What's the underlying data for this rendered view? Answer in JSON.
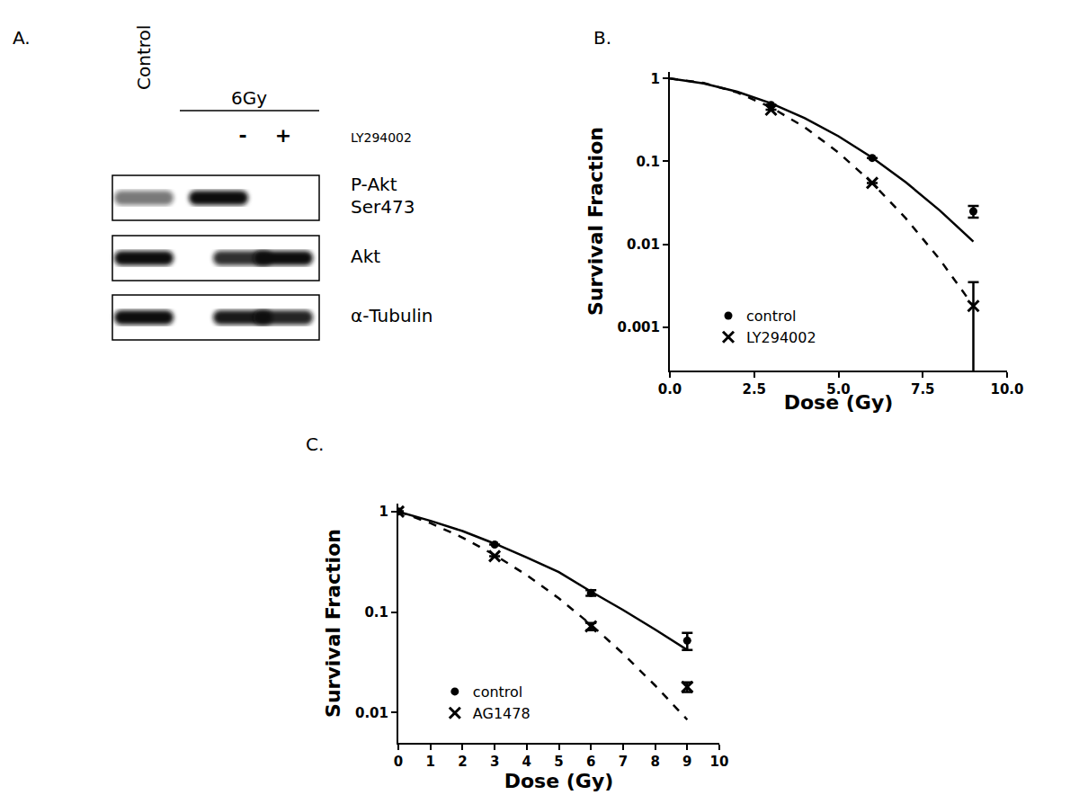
{
  "blot": {
    "title": "A.",
    "control_label": "Control",
    "treatment": "6Gy",
    "treatment_marks": [
      "-",
      "+"
    ],
    "drug": "LY294002",
    "rows": [
      {
        "label": [
          "P-Akt",
          "Ser473"
        ],
        "bands": [
          0.55,
          1.0,
          0.0
        ]
      },
      {
        "label": [
          "Akt"
        ],
        "bands": [
          1.0,
          0.85,
          1.0
        ]
      },
      {
        "label": [
          "α-Tubulin"
        ],
        "bands": [
          1.0,
          0.95,
          0.9
        ]
      }
    ]
  },
  "chart_data": [
    {
      "type": "scatter",
      "title": "B.",
      "x_label": "Dose (Gy)",
      "y_label": "Survival Fraction",
      "log": "y",
      "grid": false,
      "legend": "lower left",
      "xlim": [
        0,
        10
      ],
      "xticks": [
        {
          "value": 0,
          "label": "0.0"
        },
        {
          "value": 2.5,
          "label": "2.5"
        },
        {
          "value": 5,
          "label": "5.0"
        },
        {
          "value": 7.5,
          "label": "7.5"
        },
        {
          "value": 10,
          "label": "10.0"
        }
      ],
      "ylim": [
        0.0003,
        1.2
      ],
      "yticks": [
        0.001,
        0.01,
        0.1,
        1
      ],
      "x": [
        3,
        6,
        9
      ],
      "fit_x": [
        0,
        1,
        2,
        3,
        4,
        5,
        6,
        7,
        8,
        9
      ],
      "series": [
        {
          "name": "control",
          "color": "#000000",
          "marker": "circle",
          "line_style": "solid",
          "values": [
            0.48,
            0.11,
            0.025
          ],
          "errors": [
            0,
            0,
            0.004
          ],
          "fit": [
            1,
            0.871,
            0.692,
            0.502,
            0.332,
            0.201,
            0.111,
            0.0559,
            0.0257,
            0.0108
          ]
        },
        {
          "name": "LY294002",
          "color": "#000000",
          "marker": "x",
          "line_style": "dash",
          "values": [
            0.42,
            0.055,
            0.0018
          ],
          "errors": [
            0,
            0,
            0.0017
          ],
          "fit": [
            1,
            0.885,
            0.678,
            0.449,
            0.258,
            0.128,
            0.055,
            0.0205,
            0.0066,
            0.0018
          ]
        }
      ]
    },
    {
      "type": "scatter",
      "title": "C.",
      "x_label": "Dose (Gy)",
      "y_label": "Survival Fraction",
      "log": "y",
      "grid": false,
      "legend": "lower left",
      "xlim": [
        0,
        10
      ],
      "xticks": [
        0,
        1,
        2,
        3,
        4,
        5,
        6,
        7,
        8,
        9,
        10
      ],
      "ylim": [
        0.005,
        1.2
      ],
      "yticks": [
        0.01,
        0.1,
        1
      ],
      "x": [
        0,
        3,
        6,
        9
      ],
      "fit_x": [
        0,
        1,
        2,
        3,
        4,
        5,
        6,
        7,
        8,
        9
      ],
      "series": [
        {
          "name": "control",
          "color": "#000000",
          "marker": "circle",
          "line_style": "solid",
          "values": [
            1,
            0.47,
            0.155,
            0.052
          ],
          "errors": [
            0,
            0,
            0.01,
            0.01
          ],
          "fit": [
            1,
            0.81,
            0.64,
            0.48,
            0.35,
            0.25,
            0.16,
            0.105,
            0.067,
            0.042
          ]
        },
        {
          "name": "AG1478",
          "color": "#000000",
          "marker": "x",
          "line_style": "dash",
          "values": [
            1,
            0.36,
            0.072,
            0.018
          ],
          "errors": [
            0,
            0,
            0.006,
            0.002
          ],
          "fit": [
            1,
            0.768,
            0.551,
            0.37,
            0.233,
            0.137,
            0.075,
            0.0386,
            0.0186,
            0.0085
          ]
        }
      ]
    }
  ]
}
